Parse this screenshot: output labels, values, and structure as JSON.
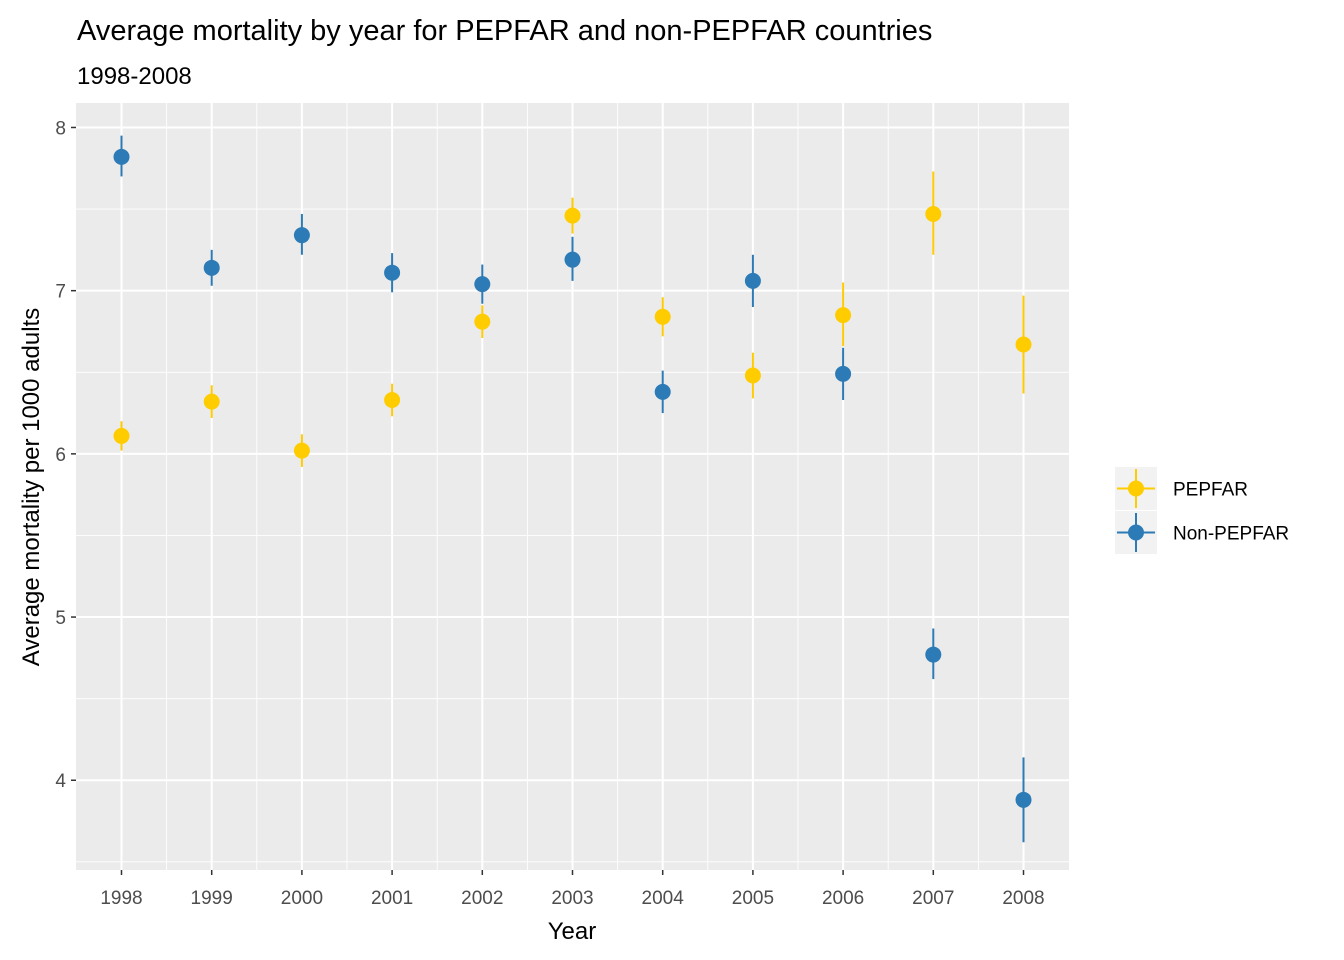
{
  "chart_data": {
    "type": "scatter",
    "title": "Average mortality by year for PEPFAR and non-PEPFAR countries",
    "subtitle": "1998-2008",
    "xlabel": "Year",
    "ylabel": "Average mortality per 1000 adults",
    "categories": [
      "1998",
      "1999",
      "2000",
      "2001",
      "2002",
      "2003",
      "2004",
      "2005",
      "2006",
      "2007",
      "2008"
    ],
    "y_ticks": [
      "4",
      "5",
      "6",
      "7",
      "8"
    ],
    "ylim": [
      3.45,
      8.15
    ],
    "grid": true,
    "legend_position": "right",
    "series": [
      {
        "name": "PEPFAR",
        "color": "#FFCC00",
        "values": [
          6.11,
          6.32,
          6.02,
          6.33,
          6.81,
          7.46,
          6.84,
          6.48,
          6.85,
          7.47,
          6.67
        ],
        "lower": [
          6.02,
          6.22,
          5.92,
          6.23,
          6.71,
          7.35,
          6.72,
          6.34,
          6.66,
          7.22,
          6.37
        ],
        "upper": [
          6.2,
          6.42,
          6.12,
          6.43,
          6.91,
          7.57,
          6.96,
          6.62,
          7.05,
          7.73,
          6.97
        ]
      },
      {
        "name": "Non-PEPFAR",
        "color": "#2C7BB6",
        "values": [
          7.82,
          7.14,
          7.34,
          7.11,
          7.04,
          7.19,
          6.38,
          7.06,
          6.49,
          4.77,
          3.88
        ],
        "lower": [
          7.7,
          7.03,
          7.22,
          6.99,
          6.92,
          7.06,
          6.25,
          6.9,
          6.33,
          4.62,
          3.62
        ],
        "upper": [
          7.95,
          7.25,
          7.47,
          7.23,
          7.16,
          7.33,
          6.51,
          7.22,
          6.65,
          4.93,
          4.14
        ]
      }
    ]
  }
}
